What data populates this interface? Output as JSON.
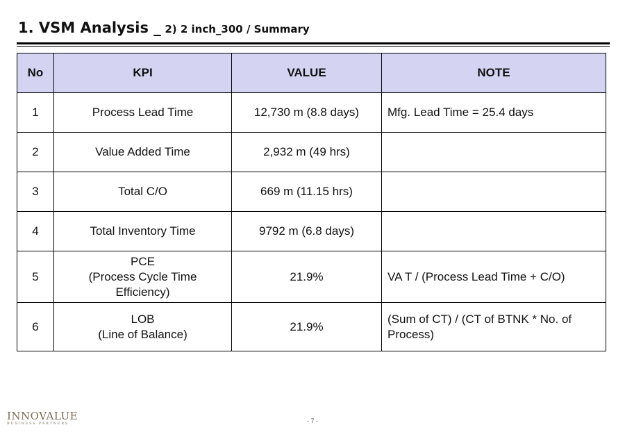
{
  "header": {
    "title_main": "1. VSM Analysis _",
    "title_sub": "2) 2 inch_300 / Summary"
  },
  "table": {
    "columns": [
      "No",
      "KPI",
      "VALUE",
      "NOTE"
    ],
    "rows": [
      {
        "no": "1",
        "kpi": [
          "Process Lead Time"
        ],
        "value": "12,730 m (8.8 days)",
        "note": "Mfg. Lead Time =  25.4 days"
      },
      {
        "no": "2",
        "kpi": [
          "Value Added Time"
        ],
        "value": "2,932 m (49 hrs)",
        "note": ""
      },
      {
        "no": "3",
        "kpi": [
          "Total C/O"
        ],
        "value": "669 m (11.15 hrs)",
        "note": ""
      },
      {
        "no": "4",
        "kpi": [
          "Total Inventory Time"
        ],
        "value": "9792 m (6.8 days)",
        "note": ""
      },
      {
        "no": "5",
        "kpi": [
          "PCE",
          "(Process Cycle Time",
          "Efficiency)"
        ],
        "value": "21.9%",
        "note": "VA T / (Process Lead Time + C/O)"
      },
      {
        "no": "6",
        "kpi": [
          "LOB",
          "(Line of Balance)"
        ],
        "value": "21.9%",
        "note": "(Sum of CT) / (CT of BTNK * No. of Process)"
      }
    ]
  },
  "footer": {
    "logo_brand": "INNOVALUE",
    "logo_tagline": "BUSINESS PARTNERS",
    "page_number": "- 7 -"
  },
  "colors": {
    "header_fill": "#d4d4f2",
    "logo": "#7a6a52"
  }
}
